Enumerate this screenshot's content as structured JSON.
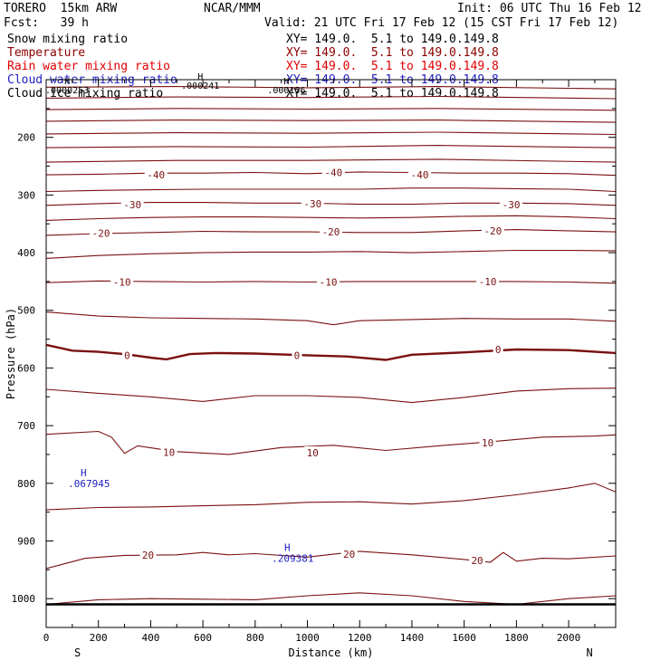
{
  "header": {
    "model": "TORERO  15km ARW",
    "org": "NCAR/MMM",
    "init": "Init: 06 UTC Thu 16 Feb 12",
    "fcst": "Fcst:   39 h",
    "valid": "Valid: 21 UTC Fri 17 Feb 12 (15 CST Fri 17 Feb 12)"
  },
  "fields": [
    {
      "name": "Snow mixing ratio",
      "xy": "XY= 149.0.  5.1 to 149.0.149.8",
      "color": "#000000"
    },
    {
      "name": "Temperature",
      "xy": "XY= 149.0.  5.1 to 149.0.149.8",
      "color": "#8b0000"
    },
    {
      "name": "Rain water mixing ratio",
      "xy": "XY= 149.0.  5.1 to 149.0.149.8",
      "color": "#e00000"
    },
    {
      "name": "Cloud water mixing ratio",
      "xy": "XY= 149.0.  5.1 to 149.0.149.8",
      "color": "#2020c0"
    },
    {
      "name": "Cloud ice mixing ratio",
      "xy": "XY= 149.0.  5.1 to 149.0.149.8",
      "color": "#000000"
    }
  ],
  "chart_data": {
    "type": "line",
    "title": "",
    "xlabel": "Distance (km)",
    "ylabel": "Pressure (hPa)",
    "xlim": [
      0,
      2180
    ],
    "ylim": [
      1050,
      100
    ],
    "x_ticks": [
      0,
      200,
      400,
      600,
      800,
      1000,
      1200,
      1400,
      1600,
      1800,
      2000
    ],
    "y_ticks": [
      200,
      300,
      400,
      500,
      600,
      700,
      800,
      900,
      1000
    ],
    "end_labels": {
      "left": "S",
      "right": "N"
    },
    "surface_pressure": 1010,
    "contour_interval_c": 5,
    "contour_color": "#7a1010",
    "series": [
      {
        "level": -60,
        "x": [
          0,
          500,
          1000,
          1500,
          2180
        ],
        "y": [
          113,
          112,
          114,
          112,
          116
        ]
      },
      {
        "level": -58,
        "x": [
          0,
          500,
          1000,
          1500,
          2180
        ],
        "y": [
          132,
          130,
          131,
          129,
          133
        ]
      },
      {
        "level": -55,
        "x": [
          0,
          500,
          1000,
          1500,
          2180
        ],
        "y": [
          152,
          150,
          151,
          150,
          153
        ]
      },
      {
        "level": -52,
        "x": [
          0,
          500,
          1000,
          1500,
          2180
        ],
        "y": [
          172,
          170,
          171,
          170,
          174
        ]
      },
      {
        "level": -49,
        "x": [
          0,
          500,
          1000,
          1500,
          2180
        ],
        "y": [
          194,
          192,
          193,
          191,
          195
        ]
      },
      {
        "level": -46,
        "x": [
          0,
          500,
          1000,
          1500,
          2180
        ],
        "y": [
          218,
          216,
          217,
          214,
          218
        ]
      },
      {
        "level": -43,
        "x": [
          0,
          500,
          1000,
          1500,
          2180
        ],
        "y": [
          243,
          240,
          240,
          238,
          243
        ]
      },
      {
        "level": -40,
        "x": [
          0,
          200,
          400,
          600,
          800,
          1000,
          1200,
          1400,
          1600,
          1800,
          2000,
          2180
        ],
        "y": [
          265,
          264,
          262,
          262,
          261,
          263,
          260,
          261,
          262,
          262,
          263,
          266
        ]
      },
      {
        "level": -35,
        "x": [
          0,
          200,
          400,
          600,
          800,
          1000,
          1200,
          1400,
          1600,
          1800,
          2000,
          2180
        ],
        "y": [
          294,
          292,
          291,
          290,
          290,
          290,
          290,
          288,
          288,
          289,
          290,
          294
        ]
      },
      {
        "level": -30,
        "x": [
          0,
          200,
          400,
          600,
          800,
          1000,
          1200,
          1400,
          1600,
          1800,
          2000,
          2180
        ],
        "y": [
          318,
          315,
          313,
          313,
          314,
          314,
          316,
          316,
          314,
          314,
          315,
          318
        ]
      },
      {
        "level": -25,
        "x": [
          0,
          200,
          400,
          600,
          800,
          1000,
          1200,
          1400,
          1600,
          1800,
          2000,
          2180
        ],
        "y": [
          344,
          341,
          339,
          338,
          338,
          339,
          340,
          339,
          337,
          336,
          338,
          341
        ]
      },
      {
        "level": -20,
        "x": [
          0,
          200,
          400,
          600,
          800,
          1000,
          1200,
          1400,
          1600,
          1800,
          2000,
          2180
        ],
        "y": [
          370,
          367,
          365,
          363,
          364,
          364,
          365,
          365,
          362,
          360,
          362,
          364
        ]
      },
      {
        "level": -15,
        "x": [
          0,
          200,
          400,
          600,
          800,
          1000,
          1200,
          1400,
          1600,
          1800,
          2000,
          2180
        ],
        "y": [
          410,
          405,
          402,
          400,
          399,
          399,
          398,
          400,
          398,
          396,
          396,
          397
        ]
      },
      {
        "level": -10,
        "x": [
          0,
          200,
          400,
          600,
          800,
          1000,
          1200,
          1400,
          1600,
          1800,
          2000,
          2180
        ],
        "y": [
          452,
          449,
          450,
          451,
          450,
          451,
          450,
          450,
          450,
          450,
          451,
          453
        ]
      },
      {
        "level": -5,
        "x": [
          0,
          200,
          400,
          600,
          800,
          1000,
          1100,
          1200,
          1400,
          1600,
          1800,
          2000,
          2180
        ],
        "y": [
          503,
          510,
          513,
          514,
          515,
          518,
          525,
          518,
          516,
          514,
          515,
          515,
          519
        ]
      },
      {
        "level": 0,
        "bold": true,
        "x": [
          0,
          100,
          200,
          300,
          400,
          460,
          550,
          650,
          800,
          1000,
          1150,
          1300,
          1400,
          1600,
          1800,
          2000,
          2180
        ],
        "y": [
          560,
          570,
          572,
          576,
          582,
          585,
          576,
          574,
          575,
          578,
          580,
          586,
          577,
          573,
          568,
          569,
          574
        ]
      },
      {
        "level": 5,
        "x": [
          0,
          200,
          400,
          600,
          800,
          1000,
          1200,
          1400,
          1600,
          1800,
          2000,
          2180
        ],
        "y": [
          637,
          644,
          650,
          658,
          648,
          648,
          651,
          660,
          651,
          640,
          636,
          635
        ]
      },
      {
        "level": 10,
        "x": [
          0,
          200,
          250,
          300,
          350,
          500,
          700,
          900,
          1100,
          1300,
          1500,
          1700,
          1900,
          2100,
          2180
        ],
        "y": [
          715,
          710,
          720,
          748,
          735,
          745,
          750,
          738,
          734,
          743,
          735,
          728,
          720,
          718,
          716
        ]
      },
      {
        "level": 15,
        "x": [
          0,
          200,
          400,
          600,
          800,
          1000,
          1200,
          1400,
          1600,
          1800,
          2000,
          2100,
          2180
        ],
        "y": [
          846,
          842,
          841,
          839,
          837,
          833,
          832,
          836,
          830,
          820,
          808,
          800,
          815
        ]
      },
      {
        "level": 20,
        "x": [
          0,
          150,
          300,
          500,
          600,
          700,
          800,
          1000,
          1200,
          1400,
          1600,
          1700,
          1750,
          1800,
          1900,
          2000,
          2180
        ],
        "y": [
          948,
          930,
          925,
          924,
          920,
          924,
          922,
          928,
          918,
          924,
          932,
          937,
          920,
          935,
          930,
          931,
          926
        ]
      },
      {
        "level": 25,
        "x": [
          0,
          200,
          400,
          600,
          800,
          1000,
          1200,
          1400,
          1600,
          1800,
          2000,
          2180
        ],
        "y": [
          1010,
          1002,
          1000,
          1001,
          1002,
          995,
          990,
          995,
          1005,
          1010,
          1000,
          995
        ]
      }
    ],
    "contour_labels": [
      {
        "text": "-40",
        "x": 420,
        "y": 265
      },
      {
        "text": "-40",
        "x": 1100,
        "y": 261
      },
      {
        "text": "-40",
        "x": 1430,
        "y": 265
      },
      {
        "text": "-30",
        "x": 330,
        "y": 317
      },
      {
        "text": "-30",
        "x": 1020,
        "y": 315
      },
      {
        "text": "-30",
        "x": 1780,
        "y": 317
      },
      {
        "text": "-20",
        "x": 210,
        "y": 366
      },
      {
        "text": "-20",
        "x": 1090,
        "y": 364
      },
      {
        "text": "-20",
        "x": 1710,
        "y": 362
      },
      {
        "text": "-10",
        "x": 290,
        "y": 451
      },
      {
        "text": "-10",
        "x": 1080,
        "y": 451
      },
      {
        "text": "-10",
        "x": 1690,
        "y": 450
      },
      {
        "text": "0",
        "x": 310,
        "y": 578
      },
      {
        "text": "0",
        "x": 960,
        "y": 578
      },
      {
        "text": "0",
        "x": 1730,
        "y": 568
      },
      {
        "text": "10",
        "x": 470,
        "y": 746
      },
      {
        "text": "10",
        "x": 1020,
        "y": 747
      },
      {
        "text": "10",
        "x": 1690,
        "y": 730
      },
      {
        "text": "20",
        "x": 390,
        "y": 924
      },
      {
        "text": "20",
        "x": 1160,
        "y": 923
      },
      {
        "text": "20",
        "x": 1650,
        "y": 934
      }
    ],
    "extrema": [
      {
        "mark": "H",
        "value": ".067945",
        "x": 150,
        "y": 788,
        "color": "#2020c0"
      },
      {
        "mark": "H",
        "value": ".209381",
        "x": 930,
        "y": 917,
        "color": "#2020c0"
      }
    ],
    "top_annotations": [
      {
        "text": "H",
        "value": ".000241",
        "x": 590,
        "y": 100,
        "color": "#000000"
      },
      {
        "text": "H",
        "value": ".000156",
        "x": 920,
        "y": 108,
        "color": "#000000"
      },
      {
        "text": "H",
        "value": ".0000253",
        "x": 80,
        "y": 108,
        "color": "#000000"
      }
    ]
  }
}
